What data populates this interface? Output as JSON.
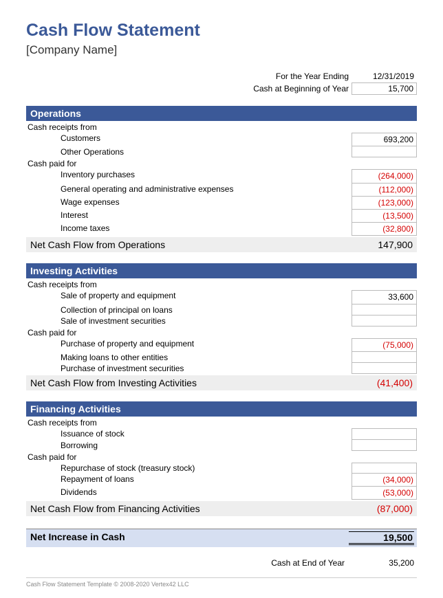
{
  "header": {
    "title": "Cash Flow Statement",
    "company": "[Company Name]",
    "year_ending_label": "For the Year Ending",
    "year_ending_value": "12/31/2019",
    "begin_cash_label": "Cash at Beginning of Year",
    "begin_cash_value": "15,700"
  },
  "sections": {
    "operations": {
      "title": "Operations",
      "receipts_label": "Cash receipts from",
      "receipts": {
        "customers": {
          "label": "Customers",
          "value": "693,200"
        },
        "other": {
          "label": "Other Operations",
          "value": ""
        }
      },
      "paid_label": "Cash paid for",
      "paid": {
        "inventory": {
          "label": "Inventory purchases",
          "value": "(264,000)"
        },
        "general": {
          "label": "General operating and administrative expenses",
          "value": "(112,000)"
        },
        "wage": {
          "label": "Wage expenses",
          "value": "(123,000)"
        },
        "interest": {
          "label": "Interest",
          "value": "(13,500)"
        },
        "taxes": {
          "label": "Income taxes",
          "value": "(32,800)"
        }
      },
      "net_label": "Net Cash Flow from Operations",
      "net_value": "147,900"
    },
    "investing": {
      "title": "Investing Activities",
      "receipts_label": "Cash receipts from",
      "receipts": {
        "sale_pe": {
          "label": "Sale of property and equipment",
          "value": "33,600"
        },
        "collection": {
          "label": "Collection of principal on loans",
          "value": ""
        },
        "sale_sec": {
          "label": "Sale of investment securities",
          "value": ""
        }
      },
      "paid_label": "Cash paid for",
      "paid": {
        "purchase_pe": {
          "label": "Purchase of property and equipment",
          "value": "(75,000)"
        },
        "loans": {
          "label": "Making loans to other entities",
          "value": ""
        },
        "purchase_sec": {
          "label": "Purchase of investment securities",
          "value": ""
        }
      },
      "net_label": "Net Cash Flow from Investing Activities",
      "net_value": "(41,400)"
    },
    "financing": {
      "title": "Financing Activities",
      "receipts_label": "Cash receipts from",
      "receipts": {
        "issuance": {
          "label": "Issuance of stock",
          "value": ""
        },
        "borrowing": {
          "label": "Borrowing",
          "value": ""
        }
      },
      "paid_label": "Cash paid for",
      "paid": {
        "repurchase": {
          "label": "Repurchase of stock (treasury stock)",
          "value": ""
        },
        "repayment": {
          "label": "Repayment of loans",
          "value": "(34,000)"
        },
        "dividends": {
          "label": "Dividends",
          "value": "(53,000)"
        }
      },
      "net_label": "Net Cash Flow from Financing Activities",
      "net_value": "(87,000)"
    }
  },
  "summary": {
    "increase_label": "Net Increase in Cash",
    "increase_value": "19,500",
    "end_cash_label": "Cash at End of Year",
    "end_cash_value": "35,200"
  },
  "footer": "Cash Flow Statement Template © 2008-2020 Vertex42 LLC",
  "colors": {
    "primary": "#3b5998",
    "negative": "#d40000",
    "net_bg": "#eeeeee",
    "increase_bg": "#d6dff1"
  }
}
